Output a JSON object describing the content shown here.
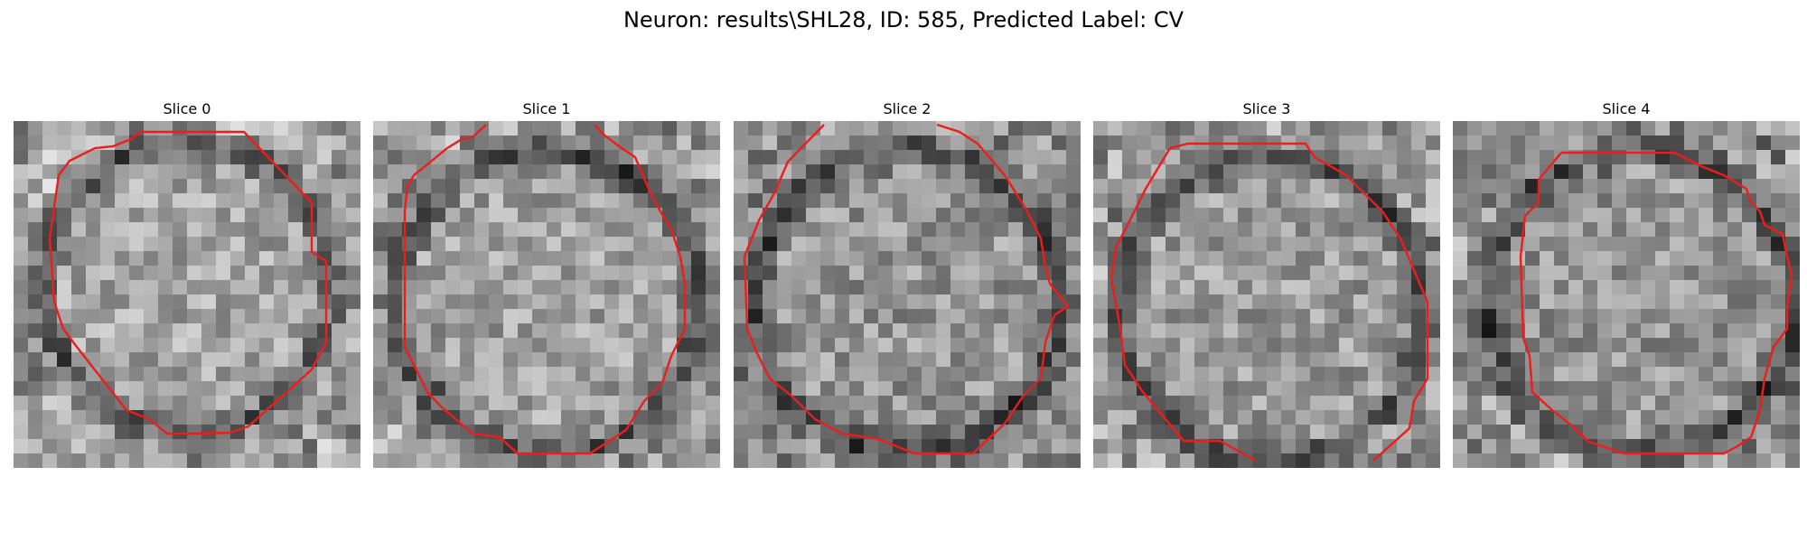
{
  "title": "Neuron: results\\SHL28, ID: 585, Predicted Label: CV",
  "contour_color": "#ee1c1c",
  "slices": [
    {
      "label": "Slice 0"
    },
    {
      "label": "Slice 1"
    },
    {
      "label": "Slice 2"
    },
    {
      "label": "Slice 3"
    },
    {
      "label": "Slice 4"
    }
  ]
}
